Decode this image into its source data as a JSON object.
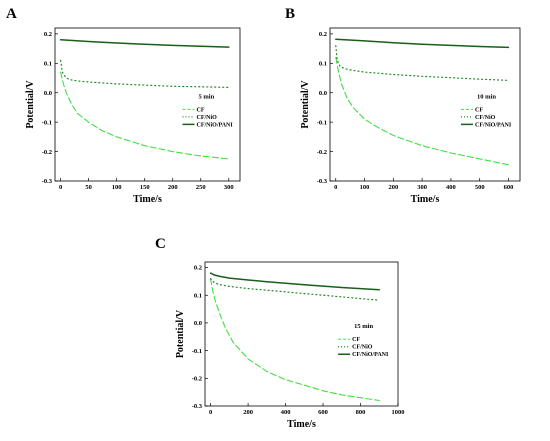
{
  "colors": {
    "CF": "#44dd44",
    "CF/NiO": "#228822",
    "CF/NiO/PANI": "#1a5e1a"
  },
  "chart_data": [
    {
      "type": "line",
      "panel_label": "A",
      "annotation": "5 min",
      "xlabel": "Time/s",
      "ylabel": "Potential/V",
      "xlim": [
        -10,
        320
      ],
      "ylim": [
        -0.3,
        0.22
      ],
      "xticks": [
        0,
        50,
        100,
        150,
        200,
        250,
        300
      ],
      "yticks": [
        -0.3,
        -0.2,
        -0.1,
        0.0,
        0.1,
        0.2
      ],
      "ytick_labels": [
        "-0.3",
        "-0.2",
        "-0.1",
        "0.0",
        "0.1",
        "0.2"
      ],
      "series": [
        {
          "name": "CF",
          "style": "dashed",
          "x": [
            0,
            5,
            10,
            20,
            30,
            50,
            75,
            100,
            150,
            200,
            250,
            300
          ],
          "y": [
            0.07,
            0.03,
            0.0,
            -0.04,
            -0.07,
            -0.1,
            -0.13,
            -0.15,
            -0.18,
            -0.2,
            -0.215,
            -0.225
          ]
        },
        {
          "name": "CF/NiO",
          "style": "dotted",
          "x": [
            0,
            3,
            8,
            15,
            30,
            60,
            100,
            150,
            200,
            250,
            300
          ],
          "y": [
            0.11,
            0.07,
            0.055,
            0.045,
            0.04,
            0.035,
            0.03,
            0.026,
            0.022,
            0.02,
            0.018
          ]
        },
        {
          "name": "CF/NiO/PANI",
          "style": "solid",
          "x": [
            0,
            50,
            100,
            150,
            200,
            250,
            300
          ],
          "y": [
            0.18,
            0.174,
            0.169,
            0.165,
            0.161,
            0.158,
            0.155
          ]
        }
      ]
    },
    {
      "type": "line",
      "panel_label": "B",
      "annotation": "10 min",
      "xlabel": "Time/s",
      "ylabel": "Potential/V",
      "xlim": [
        -20,
        640
      ],
      "ylim": [
        -0.3,
        0.22
      ],
      "xticks": [
        0,
        100,
        200,
        300,
        400,
        500,
        600
      ],
      "yticks": [
        -0.3,
        -0.2,
        -0.1,
        0.0,
        0.1,
        0.2
      ],
      "ytick_labels": [
        "-0.3",
        "-0.2",
        "-0.1",
        "0.0",
        "0.1",
        "0.2"
      ],
      "series": [
        {
          "name": "CF",
          "style": "dashed",
          "x": [
            0,
            10,
            20,
            40,
            60,
            100,
            150,
            200,
            300,
            400,
            500,
            600
          ],
          "y": [
            0.12,
            0.07,
            0.03,
            -0.02,
            -0.05,
            -0.09,
            -0.12,
            -0.145,
            -0.18,
            -0.205,
            -0.225,
            -0.245
          ]
        },
        {
          "name": "CF/NiO",
          "style": "dotted",
          "x": [
            0,
            5,
            15,
            30,
            60,
            100,
            200,
            300,
            400,
            500,
            600
          ],
          "y": [
            0.16,
            0.11,
            0.09,
            0.082,
            0.076,
            0.07,
            0.062,
            0.056,
            0.051,
            0.046,
            0.042
          ]
        },
        {
          "name": "CF/NiO/PANI",
          "style": "solid",
          "x": [
            0,
            100,
            200,
            300,
            400,
            500,
            600
          ],
          "y": [
            0.182,
            0.176,
            0.17,
            0.165,
            0.161,
            0.157,
            0.154
          ]
        }
      ]
    },
    {
      "type": "line",
      "panel_label": "C",
      "annotation": "15 min",
      "xlabel": "Time/s",
      "ylabel": "Potential/V",
      "xlim": [
        -30,
        1000
      ],
      "ylim": [
        -0.3,
        0.22
      ],
      "xticks": [
        0,
        200,
        400,
        600,
        800,
        1000
      ],
      "yticks": [
        -0.3,
        -0.2,
        -0.1,
        0.0,
        0.1,
        0.2
      ],
      "ytick_labels": [
        "-0.3",
        "-0.2",
        "-0.1",
        "0.0",
        "0.1",
        "0.2"
      ],
      "series": [
        {
          "name": "CF",
          "style": "dashed",
          "x": [
            0,
            10,
            25,
            50,
            80,
            120,
            200,
            300,
            400,
            500,
            600,
            700,
            800,
            900
          ],
          "y": [
            0.16,
            0.12,
            0.08,
            0.03,
            -0.02,
            -0.07,
            -0.13,
            -0.175,
            -0.205,
            -0.225,
            -0.245,
            -0.26,
            -0.27,
            -0.28
          ]
        },
        {
          "name": "CF/NiO",
          "style": "dotted",
          "x": [
            0,
            20,
            50,
            100,
            200,
            300,
            400,
            500,
            600,
            700,
            800,
            900
          ],
          "y": [
            0.16,
            0.145,
            0.138,
            0.132,
            0.124,
            0.118,
            0.112,
            0.106,
            0.1,
            0.094,
            0.088,
            0.082
          ]
        },
        {
          "name": "CF/NiO/PANI",
          "style": "solid",
          "x": [
            0,
            20,
            50,
            100,
            200,
            300,
            400,
            500,
            600,
            700,
            800,
            900
          ],
          "y": [
            0.18,
            0.173,
            0.168,
            0.162,
            0.155,
            0.149,
            0.143,
            0.138,
            0.133,
            0.128,
            0.124,
            0.12
          ]
        }
      ]
    }
  ]
}
